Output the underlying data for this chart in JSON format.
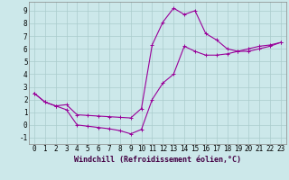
{
  "xlabel": "Windchill (Refroidissement éolien,°C)",
  "background_color": "#cce8ea",
  "grid_color": "#aacccc",
  "line_color": "#990099",
  "xlim": [
    -0.5,
    23.5
  ],
  "ylim": [
    -1.5,
    9.7
  ],
  "xticks": [
    0,
    1,
    2,
    3,
    4,
    5,
    6,
    7,
    8,
    9,
    10,
    11,
    12,
    13,
    14,
    15,
    16,
    17,
    18,
    19,
    20,
    21,
    22,
    23
  ],
  "yticks": [
    -1,
    0,
    1,
    2,
    3,
    4,
    5,
    6,
    7,
    8,
    9
  ],
  "curve1_x": [
    0,
    1,
    2,
    3,
    4,
    5,
    6,
    7,
    8,
    9,
    10,
    11,
    12,
    13,
    14,
    15,
    16,
    17,
    18,
    19,
    20,
    21,
    22,
    23
  ],
  "curve1_y": [
    2.5,
    1.8,
    1.5,
    1.6,
    0.8,
    0.75,
    0.7,
    0.65,
    0.6,
    0.55,
    1.3,
    6.3,
    8.1,
    9.2,
    8.7,
    9.0,
    7.2,
    6.7,
    6.0,
    5.8,
    5.8,
    6.0,
    6.2,
    6.5
  ],
  "curve2_x": [
    0,
    1,
    2,
    3,
    4,
    5,
    6,
    7,
    8,
    9,
    10,
    11,
    12,
    13,
    14,
    15,
    16,
    17,
    18,
    19,
    20,
    21,
    22,
    23
  ],
  "curve2_y": [
    2.5,
    1.8,
    1.5,
    1.2,
    0.0,
    -0.1,
    -0.2,
    -0.3,
    -0.45,
    -0.7,
    -0.35,
    2.0,
    3.3,
    4.0,
    6.2,
    5.8,
    5.5,
    5.5,
    5.6,
    5.8,
    6.0,
    6.2,
    6.3,
    6.5
  ],
  "tick_fontsize": 5.5,
  "xlabel_fontsize": 6.0
}
